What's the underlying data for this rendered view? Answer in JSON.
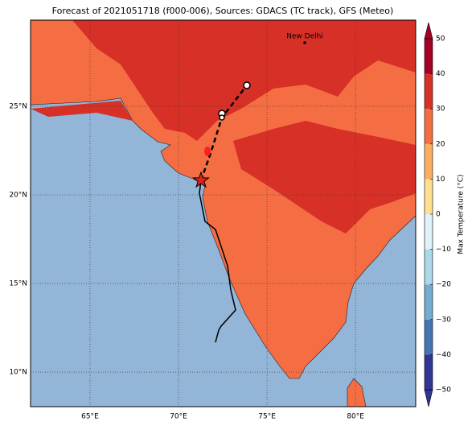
{
  "title": "Forecast of 2021051718 (f000-006), Sources: GDACS (TC track), GFS (Meteo)",
  "map": {
    "xlim": [
      61.64,
      83.4
    ],
    "ylim": [
      8.05,
      29.86
    ],
    "xticks": [
      {
        "value": 65,
        "label": "65°E"
      },
      {
        "value": 70,
        "label": "70°E"
      },
      {
        "value": 75,
        "label": "75°E"
      },
      {
        "value": 80,
        "label": "80°E"
      }
    ],
    "yticks": [
      {
        "value": 10,
        "label": "10°N"
      },
      {
        "value": 15,
        "label": "15°N"
      },
      {
        "value": 20,
        "label": "20°N"
      },
      {
        "value": 25,
        "label": "25°N"
      }
    ],
    "city": "New Delhi",
    "ocean_color": "#92b5d8",
    "land_color": "#f46d43",
    "hot_color": "#d73027"
  },
  "colorbar": {
    "label": "Max Temperature (°C)",
    "lim": [
      -50,
      50
    ],
    "ticks": [
      {
        "value": -50,
        "label": "−50"
      },
      {
        "value": -40,
        "label": "−40"
      },
      {
        "value": -30,
        "label": "−30"
      },
      {
        "value": -20,
        "label": "−20"
      },
      {
        "value": -10,
        "label": "−10"
      },
      0,
      10,
      20,
      30,
      40,
      50
    ],
    "colors": [
      "#313695",
      "#4575b4",
      "#74add1",
      "#abd9e9",
      "#e0f3f8",
      "#ffffbf",
      "#fee090",
      "#fdae61",
      "#f46d43",
      "#d73027",
      "#a50026"
    ]
  }
}
